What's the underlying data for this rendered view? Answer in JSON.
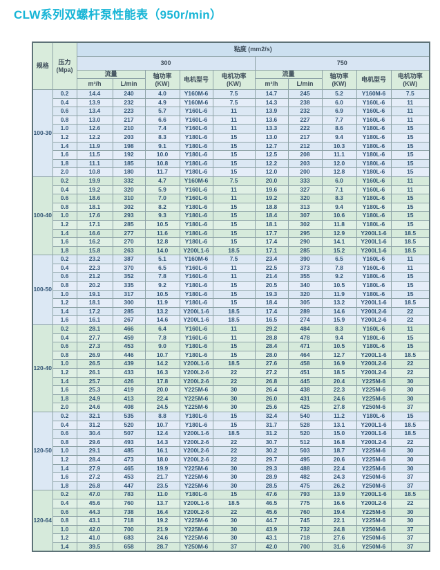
{
  "page_title": "CLW系列双螺杆泵性能表（950r/min）",
  "colors": {
    "title": "#17b5d6",
    "viscosity_header_bg": "#cce0f0",
    "viscosity_group_bg": "#d8e5f3",
    "green_header_bg": "#d9ecdc",
    "blue_row_bg": "#dce8f4",
    "green_row_bg": "#d6eadb",
    "border": "#8da2a6",
    "data_text": "#2f5273"
  },
  "table": {
    "headers": {
      "spec": "规格",
      "pressure": "压力",
      "pressure_unit": "(Mpa)",
      "viscosity": "粘度 (mm2/s)",
      "viscosity_300": "300",
      "viscosity_750": "750",
      "flow": "流量",
      "flow_m3h": "m³/h",
      "flow_lmin": "L/min",
      "shaft_power_l1": "轴功率",
      "shaft_power_l2": "(KW)",
      "motor_model": "电机型号",
      "motor_power_l1": "电机功率",
      "motor_power_l2": "(KW)"
    },
    "row_format": [
      "pressure_Mpa",
      "v300_m3h",
      "v300_Lmin",
      "v300_shaft_KW",
      "v300_motor_model",
      "v300_motor_KW",
      "v750_m3h",
      "v750_Lmin",
      "v750_shaft_KW",
      "v750_motor_model",
      "v750_motor_KW"
    ],
    "groups": [
      {
        "spec": "100-30",
        "tint": "blue",
        "rows": [
          [
            "0.2",
            "14.4",
            "240",
            "4.0",
            "Y160M-6",
            "7.5",
            "14.7",
            "245",
            "5.2",
            "Y160M-6",
            "7.5"
          ],
          [
            "0.4",
            "13.9",
            "232",
            "4.9",
            "Y160M-6",
            "7.5",
            "14.3",
            "238",
            "6.0",
            "Y160L-6",
            "11"
          ],
          [
            "0.6",
            "13.4",
            "223",
            "5.7",
            "Y160L-6",
            "11",
            "13.9",
            "232",
            "6.9",
            "Y160L-6",
            "11"
          ],
          [
            "0.8",
            "13.0",
            "217",
            "6.6",
            "Y160L-6",
            "11",
            "13.6",
            "227",
            "7.7",
            "Y160L-6",
            "11"
          ],
          [
            "1.0",
            "12.6",
            "210",
            "7.4",
            "Y160L-6",
            "11",
            "13.3",
            "222",
            "8.6",
            "Y180L-6",
            "15"
          ],
          [
            "1.2",
            "12.2",
            "203",
            "8.3",
            "Y180L-6",
            "15",
            "13.0",
            "217",
            "9.4",
            "Y180L-6",
            "15"
          ],
          [
            "1.4",
            "11.9",
            "198",
            "9.1",
            "Y180L-6",
            "15",
            "12.7",
            "212",
            "10.3",
            "Y180L-6",
            "15"
          ],
          [
            "1.6",
            "11.5",
            "192",
            "10.0",
            "Y180L-6",
            "15",
            "12.5",
            "208",
            "11.1",
            "Y180L-6",
            "15"
          ],
          [
            "1.8",
            "11.1",
            "185",
            "10.8",
            "Y180L-6",
            "15",
            "12.2",
            "203",
            "12.0",
            "Y180L-6",
            "15"
          ],
          [
            "2.0",
            "10.8",
            "180",
            "11.7",
            "Y180L-6",
            "15",
            "12.0",
            "200",
            "12.8",
            "Y180L-6",
            "15"
          ]
        ]
      },
      {
        "spec": "100-40",
        "tint": "green",
        "rows": [
          [
            "0.2",
            "19.9",
            "332",
            "4.7",
            "Y160M-6",
            "7.5",
            "20.0",
            "333",
            "6.0",
            "Y160L-6",
            "11"
          ],
          [
            "0.4",
            "19.2",
            "320",
            "5.9",
            "Y160L-6",
            "11",
            "19.6",
            "327",
            "7.1",
            "Y160L-6",
            "11"
          ],
          [
            "0.6",
            "18.6",
            "310",
            "7.0",
            "Y160L-6",
            "11",
            "19.2",
            "320",
            "8.3",
            "Y180L-6",
            "15"
          ],
          [
            "0.8",
            "18.1",
            "302",
            "8.2",
            "Y180L-6",
            "15",
            "18.8",
            "313",
            "9.4",
            "Y180L-6",
            "15"
          ],
          [
            "1.0",
            "17.6",
            "293",
            "9.3",
            "Y180L-6",
            "15",
            "18.4",
            "307",
            "10.6",
            "Y180L-6",
            "15"
          ],
          [
            "1.2",
            "17.1",
            "285",
            "10.5",
            "Y180L-6",
            "15",
            "18.1",
            "302",
            "11.8",
            "Y180L-6",
            "15"
          ],
          [
            "1.4",
            "16.6",
            "277",
            "11.6",
            "Y180L-6",
            "15",
            "17.7",
            "295",
            "12.9",
            "Y200L1-6",
            "18.5"
          ],
          [
            "1.6",
            "16.2",
            "270",
            "12.8",
            "Y180L-6",
            "15",
            "17.4",
            "290",
            "14.1",
            "Y200L1-6",
            "18.5"
          ],
          [
            "1.8",
            "15.8",
            "263",
            "14.0",
            "Y200L1-6",
            "18.5",
            "17.1",
            "285",
            "15.2",
            "Y200L1-6",
            "18.5"
          ]
        ]
      },
      {
        "spec": "100-50",
        "tint": "blue",
        "rows": [
          [
            "0.2",
            "23.2",
            "387",
            "5.1",
            "Y160M-6",
            "7.5",
            "23.4",
            "390",
            "6.5",
            "Y160L-6",
            "11"
          ],
          [
            "0.4",
            "22.3",
            "370",
            "6.5",
            "Y160L-6",
            "11",
            "22.5",
            "373",
            "7.8",
            "Y160L-6",
            "11"
          ],
          [
            "0.6",
            "21.2",
            "352",
            "7.8",
            "Y160L-6",
            "11",
            "21.4",
            "355",
            "9.2",
            "Y180L-6",
            "15"
          ],
          [
            "0.8",
            "20.2",
            "335",
            "9.2",
            "Y180L-6",
            "15",
            "20.5",
            "340",
            "10.5",
            "Y180L-6",
            "15"
          ],
          [
            "1.0",
            "19.1",
            "317",
            "10.5",
            "Y180L-6",
            "15",
            "19.3",
            "320",
            "11.9",
            "Y180L-6",
            "15"
          ],
          [
            "1.2",
            "18.1",
            "300",
            "11.9",
            "Y180L-6",
            "15",
            "18.4",
            "305",
            "13.2",
            "Y200L1-6",
            "18.5"
          ],
          [
            "1.4",
            "17.2",
            "285",
            "13.2",
            "Y200L1-6",
            "18.5",
            "17.4",
            "289",
            "14.6",
            "Y200L2-6",
            "22"
          ],
          [
            "1.6",
            "16.1",
            "267",
            "14.6",
            "Y200L1-6",
            "18.5",
            "16.5",
            "274",
            "15.9",
            "Y200L2-6",
            "22"
          ]
        ]
      },
      {
        "spec": "120-40",
        "tint": "green",
        "rows": [
          [
            "0.2",
            "28.1",
            "466",
            "6.4",
            "Y160L-6",
            "11",
            "29.2",
            "484",
            "8.3",
            "Y160L-6",
            "11"
          ],
          [
            "0.4",
            "27.7",
            "459",
            "7.8",
            "Y160L-6",
            "11",
            "28.8",
            "478",
            "9.4",
            "Y180L-6",
            "15"
          ],
          [
            "0.6",
            "27.3",
            "453",
            "9.0",
            "Y180L-6",
            "15",
            "28.4",
            "471",
            "10.5",
            "Y180L-6",
            "15"
          ],
          [
            "0.8",
            "26.9",
            "446",
            "10.7",
            "Y180L-6",
            "15",
            "28.0",
            "464",
            "12.7",
            "Y200L1-6",
            "18.5"
          ],
          [
            "1.0",
            "26.5",
            "439",
            "14.2",
            "Y200L1-6",
            "18.5",
            "27.6",
            "458",
            "16.9",
            "Y200L2-6",
            "22"
          ],
          [
            "1.2",
            "26.1",
            "433",
            "16.3",
            "Y200L2-6",
            "22",
            "27.2",
            "451",
            "18.5",
            "Y200L2-6",
            "22"
          ],
          [
            "1.4",
            "25.7",
            "426",
            "17.8",
            "Y200L2-6",
            "22",
            "26.8",
            "445",
            "20.4",
            "Y225M-6",
            "30"
          ],
          [
            "1.6",
            "25.3",
            "419",
            "20.0",
            "Y225M-6",
            "30",
            "26.4",
            "438",
            "22.3",
            "Y225M-6",
            "30"
          ],
          [
            "1.8",
            "24.9",
            "413",
            "22.4",
            "Y225M-6",
            "30",
            "26.0",
            "431",
            "24.6",
            "Y225M-6",
            "30"
          ],
          [
            "2.0",
            "24.6",
            "408",
            "24.5",
            "Y225M-6",
            "30",
            "25.6",
            "425",
            "27.8",
            "Y250M-6",
            "37"
          ]
        ]
      },
      {
        "spec": "120-50",
        "tint": "blue",
        "rows": [
          [
            "0.2",
            "32.1",
            "535",
            "8.8",
            "Y180L-6",
            "15",
            "32.4",
            "540",
            "11.2",
            "Y180L-6",
            "15"
          ],
          [
            "0.4",
            "31.2",
            "520",
            "10.7",
            "Y180L-6",
            "15",
            "31.7",
            "528",
            "13.1",
            "Y200L1-6",
            "18.5"
          ],
          [
            "0.6",
            "30.4",
            "507",
            "12.4",
            "Y200L1-6",
            "18.5",
            "31.2",
            "520",
            "15.0",
            "Y200L1-6",
            "18.5"
          ],
          [
            "0.8",
            "29.6",
            "493",
            "14.3",
            "Y200L2-6",
            "22",
            "30.7",
            "512",
            "16.8",
            "Y200L2-6",
            "22"
          ],
          [
            "1.0",
            "29.1",
            "485",
            "16.1",
            "Y200L2-6",
            "22",
            "30.2",
            "503",
            "18.7",
            "Y225M-6",
            "30"
          ],
          [
            "1.2",
            "28.4",
            "473",
            "18.0",
            "Y200L2-6",
            "22",
            "29.7",
            "495",
            "20.6",
            "Y225M-6",
            "30"
          ],
          [
            "1.4",
            "27.9",
            "465",
            "19.9",
            "Y225M-6",
            "30",
            "29.3",
            "488",
            "22.4",
            "Y225M-6",
            "30"
          ],
          [
            "1.6",
            "27.2",
            "453",
            "21.7",
            "Y225M-6",
            "30",
            "28.9",
            "482",
            "24.3",
            "Y250M-6",
            "37"
          ],
          [
            "1.8",
            "26.8",
            "447",
            "23.5",
            "Y225M-6",
            "30",
            "28.5",
            "475",
            "26.2",
            "Y250M-6",
            "37"
          ]
        ]
      },
      {
        "spec": "120-64",
        "tint": "green",
        "rows": [
          [
            "0.2",
            "47.0",
            "783",
            "11.0",
            "Y180L-6",
            "15",
            "47.6",
            "793",
            "13.9",
            "Y200L1-6",
            "18.5"
          ],
          [
            "0.4",
            "45.6",
            "760",
            "13.7",
            "Y200L1-6",
            "18.5",
            "46.5",
            "775",
            "16.6",
            "Y200L2-6",
            "22"
          ],
          [
            "0.6",
            "44.3",
            "738",
            "16.4",
            "Y200L2-6",
            "22",
            "45.6",
            "760",
            "19.4",
            "Y225M-6",
            "30"
          ],
          [
            "0.8",
            "43.1",
            "718",
            "19.2",
            "Y225M-6",
            "30",
            "44.7",
            "745",
            "22.1",
            "Y225M-6",
            "30"
          ],
          [
            "1.0",
            "42.0",
            "700",
            "21.9",
            "Y225M-6",
            "30",
            "43.9",
            "732",
            "24.8",
            "Y250M-6",
            "37"
          ],
          [
            "1.2",
            "41.0",
            "683",
            "24.6",
            "Y225M-6",
            "30",
            "43.1",
            "718",
            "27.6",
            "Y250M-6",
            "37"
          ],
          [
            "1.4",
            "39.5",
            "658",
            "28.7",
            "Y250M-6",
            "37",
            "42.0",
            "700",
            "31.6",
            "Y250M-6",
            "37"
          ]
        ]
      }
    ]
  }
}
